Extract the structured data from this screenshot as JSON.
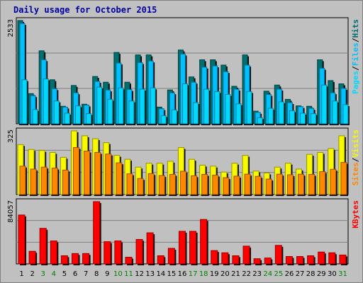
{
  "colors": {
    "background": "#c0c0c0",
    "title": "#0000a0",
    "hits": "#006f6f",
    "files": "#00c0ff",
    "pages": "#00d8ff",
    "visits": "#f8f800",
    "sites": "#ff8800",
    "kbytes": "#ff0000",
    "weekend_label": "#008000"
  },
  "chart_data": {
    "type": "bar",
    "title": "Daily usage for October 2015",
    "categories": [
      "1",
      "2",
      "3",
      "4",
      "5",
      "6",
      "7",
      "8",
      "9",
      "10",
      "11",
      "12",
      "13",
      "14",
      "15",
      "16",
      "17",
      "18",
      "19",
      "20",
      "21",
      "22",
      "23",
      "24",
      "25",
      "26",
      "27",
      "28",
      "29",
      "30",
      "31"
    ],
    "weekend_days": [
      "3",
      "4",
      "10",
      "11",
      "17",
      "18",
      "24",
      "25",
      "31"
    ],
    "panels": [
      {
        "name": "hits-files-pages",
        "ymax_label": "2533",
        "ylim": [
          0,
          2533
        ],
        "legend": [
          "Pages",
          "/",
          "Files",
          "/",
          "Hits"
        ],
        "series": [
          {
            "name": "Hits",
            "values": [
              2533,
              740,
              1790,
              1080,
              430,
              940,
              480,
              1160,
              1020,
              1750,
              1020,
              1690,
              1690,
              410,
              830,
              1810,
              1150,
              1570,
              1570,
              1440,
              920,
              1690,
              310,
              800,
              950,
              600,
              440,
              430,
              1570,
              1060,
              980
            ]
          },
          {
            "name": "Files",
            "values": [
              2460,
              690,
              1570,
              860,
              410,
              760,
              460,
              1040,
              830,
              1490,
              840,
              1500,
              1540,
              370,
              760,
              1710,
              1020,
              1390,
              1420,
              1280,
              850,
              1440,
              280,
              720,
              850,
              520,
              420,
              380,
              1360,
              760,
              870
            ]
          },
          {
            "name": "Pages",
            "values": [
              1080,
              350,
              1100,
              560,
              260,
              440,
              250,
              900,
              600,
              880,
              560,
              850,
              880,
              200,
              340,
              980,
              520,
              850,
              790,
              720,
              490,
              790,
              150,
              380,
              540,
              320,
              260,
              250,
              950,
              560,
              470
            ]
          }
        ]
      },
      {
        "name": "visits-sites",
        "ymax_label": "325",
        "ylim": [
          0,
          325
        ],
        "legend": [
          "Sites",
          "/",
          "Visits"
        ],
        "series": [
          {
            "name": "Visits",
            "values": [
              255,
              230,
              225,
              215,
              190,
              325,
              300,
              285,
              265,
              200,
              180,
              140,
              160,
              160,
              170,
              240,
              180,
              150,
              145,
              115,
              160,
              200,
              120,
              110,
              140,
              160,
              130,
              205,
              215,
              235,
              300
            ]
          },
          {
            "name": "Sites",
            "values": [
              145,
              130,
              140,
              135,
              125,
              240,
              222,
              215,
              207,
              162,
              106,
              82,
              107,
              97,
              103,
              119,
              96,
              103,
              99,
              86,
              94,
              104,
              93,
              79,
              104,
              101,
              104,
              103,
              117,
              129,
              164
            ]
          }
        ]
      },
      {
        "name": "kbytes",
        "ymax_label": "84057",
        "ylim": [
          0,
          84057
        ],
        "legend": [
          "KBytes"
        ],
        "series": [
          {
            "name": "KBytes",
            "values": [
              66000,
              17000,
              48000,
              31000,
              11000,
              14000,
              14000,
              84057,
              30000,
              31000,
              9000,
              33000,
              42000,
              11000,
              21000,
              44000,
              44000,
              60000,
              18000,
              15000,
              11000,
              24000,
              7000,
              8000,
              25000,
              10000,
              10000,
              11000,
              16000,
              15000,
              12000
            ]
          }
        ]
      }
    ]
  }
}
